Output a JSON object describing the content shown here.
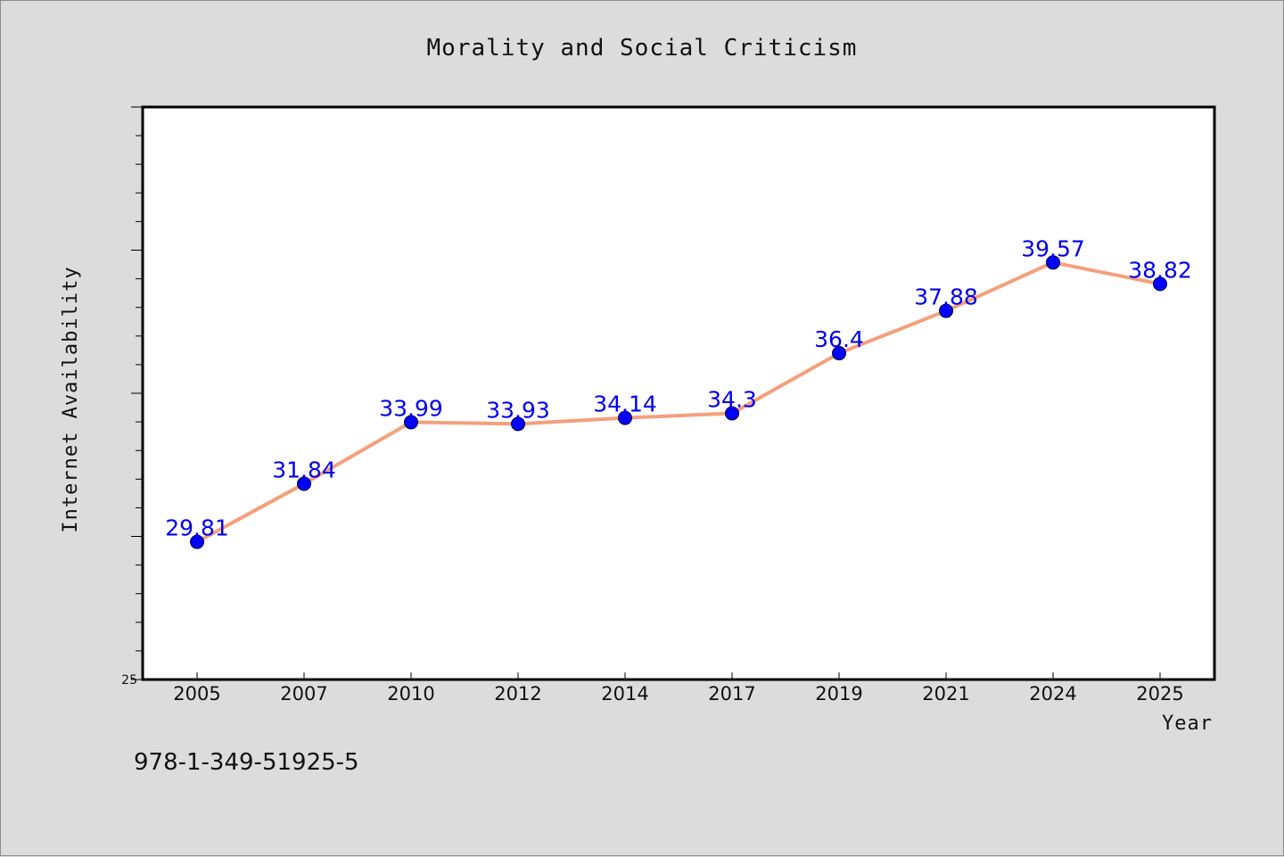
{
  "footer": {
    "text": "978-1-349-51925-5"
  },
  "colors": {
    "line": "#f4a07c",
    "marker": "#0000ff",
    "label": "#0000ee",
    "plot_bg": "#ffffff",
    "page_bg": "#dcdcdc"
  },
  "chart_data": {
    "type": "line",
    "title": "Morality and Social Criticism",
    "xlabel": "Year",
    "ylabel": "Internet Availability",
    "categories": [
      "2005",
      "2007",
      "2010",
      "2012",
      "2014",
      "2017",
      "2019",
      "2021",
      "2024",
      "2025"
    ],
    "values": [
      29.81,
      31.84,
      33.99,
      33.93,
      34.14,
      34.3,
      36.4,
      37.88,
      39.57,
      38.82
    ],
    "data_labels": [
      "29.81",
      "31.84",
      "33.99",
      "33.93",
      "34.14",
      "34.3",
      "36.4",
      "37.88",
      "39.57",
      "38.82"
    ],
    "ylim": [
      25,
      45
    ],
    "y_tick_labels": [
      "25"
    ],
    "y_minor_step": 1,
    "grid": false,
    "legend": "none"
  }
}
